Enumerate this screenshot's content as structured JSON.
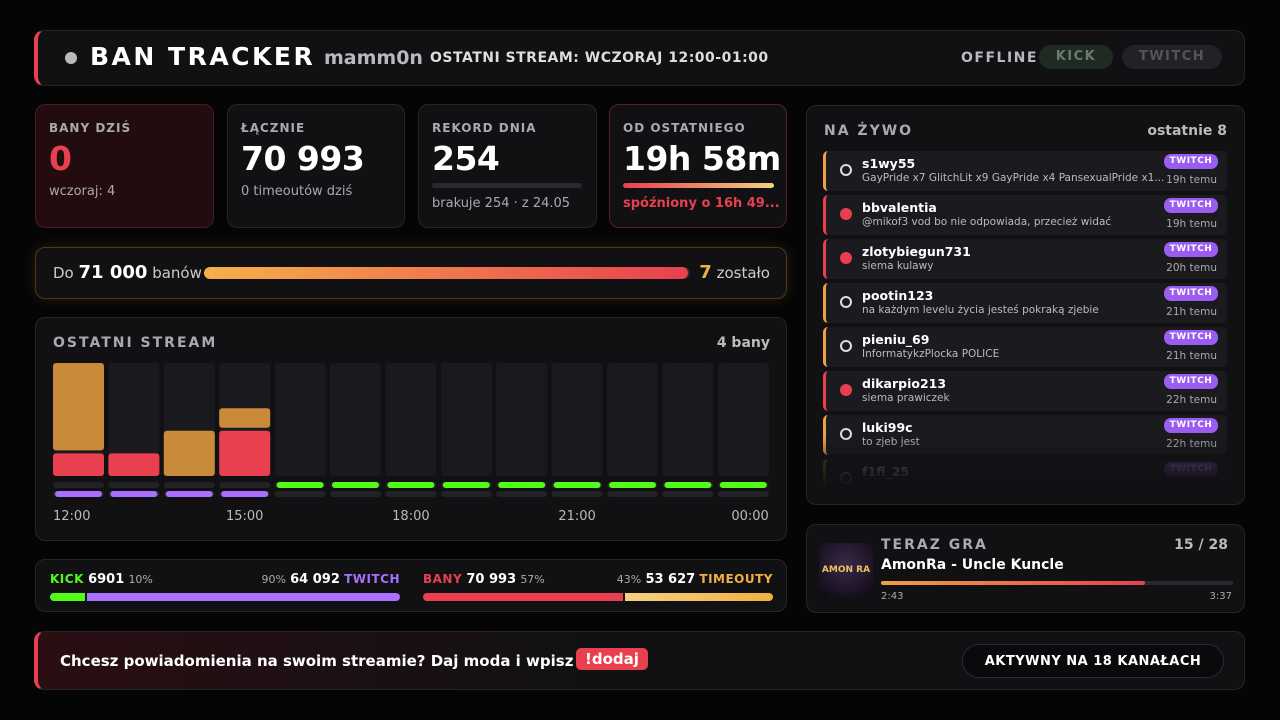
{
  "header": {
    "title": "BAN TRACKER",
    "user": "mamm0n",
    "last_stream": "OSTATNI STREAM: WCZORAJ 12:00-01:00",
    "status": "OFFLINE",
    "platforms": [
      "KICK",
      "TWITCH"
    ]
  },
  "cards": [
    {
      "label": "BANY DZIŚ",
      "value": "0",
      "sub": "wczoraj: 4"
    },
    {
      "label": "ŁĄCZNIE",
      "value": "70 993",
      "sub": "0 timeoutów dziś"
    },
    {
      "label": "REKORD DNIA",
      "value": "254",
      "sub": "brakuje 254 · z 24.05"
    },
    {
      "label": "OD OSTATNIEGO",
      "value": "19h 58m",
      "sub": "spóźniony o 16h 49..."
    }
  ],
  "goal": {
    "prefix": "Do",
    "target": "71 000",
    "unit": "banów",
    "remaining": "7",
    "remaining_label": "zostało"
  },
  "stream_chart": {
    "type": "bar",
    "stacked": true,
    "title": "OSTATNI STREAM",
    "summary": "4 bany",
    "categories": [
      "12:00",
      null,
      null,
      "15:00",
      null,
      null,
      "18:00",
      null,
      null,
      "21:00",
      null,
      null,
      "00:00"
    ],
    "series": [
      {
        "color": "#e8404f",
        "values": [
          1,
          1,
          0,
          2,
          0,
          0,
          0,
          0,
          0,
          0,
          0,
          0,
          0
        ]
      },
      {
        "color": "#c98a3a",
        "values": [
          4,
          0,
          2,
          1,
          0,
          0,
          0,
          0,
          0,
          0,
          0,
          0,
          0
        ]
      }
    ],
    "ylim": [
      0,
      5
    ],
    "strips": [
      {
        "color": "#53fc18",
        "live": [
          false,
          false,
          false,
          false,
          true,
          true,
          true,
          true,
          true,
          true,
          true,
          true,
          true
        ]
      },
      {
        "color": "#a970ff",
        "live": [
          true,
          true,
          true,
          true,
          false,
          false,
          false,
          false,
          false,
          false,
          false,
          false,
          false
        ]
      }
    ]
  },
  "split": [
    [
      {
        "name": "KICK",
        "value": "6901",
        "pct": {
          "value": 10,
          "label": "10%"
        },
        "color": "#53fc18"
      },
      {
        "name": "TWITCH",
        "value": "64 092",
        "pct": {
          "value": 90,
          "label": "90%"
        },
        "color": "#a970ff"
      }
    ],
    [
      {
        "name": "BANY",
        "value": "70 993",
        "pct": {
          "value": 57,
          "label": "57%"
        },
        "color": "#e8404f"
      },
      {
        "name": "TIMEOUTY",
        "value": "53 627",
        "pct": {
          "value": 43,
          "label": "43%"
        },
        "color": "#f0b040"
      }
    ]
  ],
  "live": {
    "title": "NA ŻYWO",
    "count": "ostatnie 8",
    "items": [
      {
        "user": "s1wy55",
        "message": "GayPride x7 GlitchLit x9 GayPride x4 PansexualPride x1...",
        "platform": "TWITCH",
        "time": "19h temu",
        "color": "#f0a040"
      },
      {
        "user": "bbvalentia",
        "message": "@mikof3 vod bo nie odpowiada, przecież widać",
        "platform": "TWITCH",
        "time": "19h temu",
        "color": "#e8404f"
      },
      {
        "user": "zlotybiegun731",
        "message": "siema kulawy",
        "platform": "TWITCH",
        "time": "20h temu",
        "color": "#e8404f"
      },
      {
        "user": "pootin123",
        "message": "na każdym levelu życia jesteś pokraką zjebie",
        "platform": "TWITCH",
        "time": "21h temu",
        "color": "#f0a040"
      },
      {
        "user": "pieniu_69",
        "message": "InformatykzPlocka POLICE",
        "platform": "TWITCH",
        "time": "21h temu",
        "color": "#f0a040"
      },
      {
        "user": "dikarpio213",
        "message": "siema prawiczek",
        "platform": "TWITCH",
        "time": "22h temu",
        "color": "#e8404f"
      },
      {
        "user": "luki99c",
        "message": "to zjeb jest",
        "platform": "TWITCH",
        "time": "22h temu",
        "color": "#f0a040"
      },
      {
        "user": "f1fl_25",
        "platform": "TWITCH",
        "color": "#f0a040"
      }
    ]
  },
  "now_playing": {
    "label": "TERAZ GRA",
    "position": "15 / 28",
    "art_text": "AMON RA",
    "track": "AmonRa - Uncle Kuncle",
    "elapsed": "2:43",
    "duration": "3:37"
  },
  "footer": {
    "text": "Chcesz powiadomienia na swoim streamie? Daj moda i wpisz",
    "command": "!dodaj",
    "status": "AKTYWNY NA 18 KANAŁACH"
  }
}
